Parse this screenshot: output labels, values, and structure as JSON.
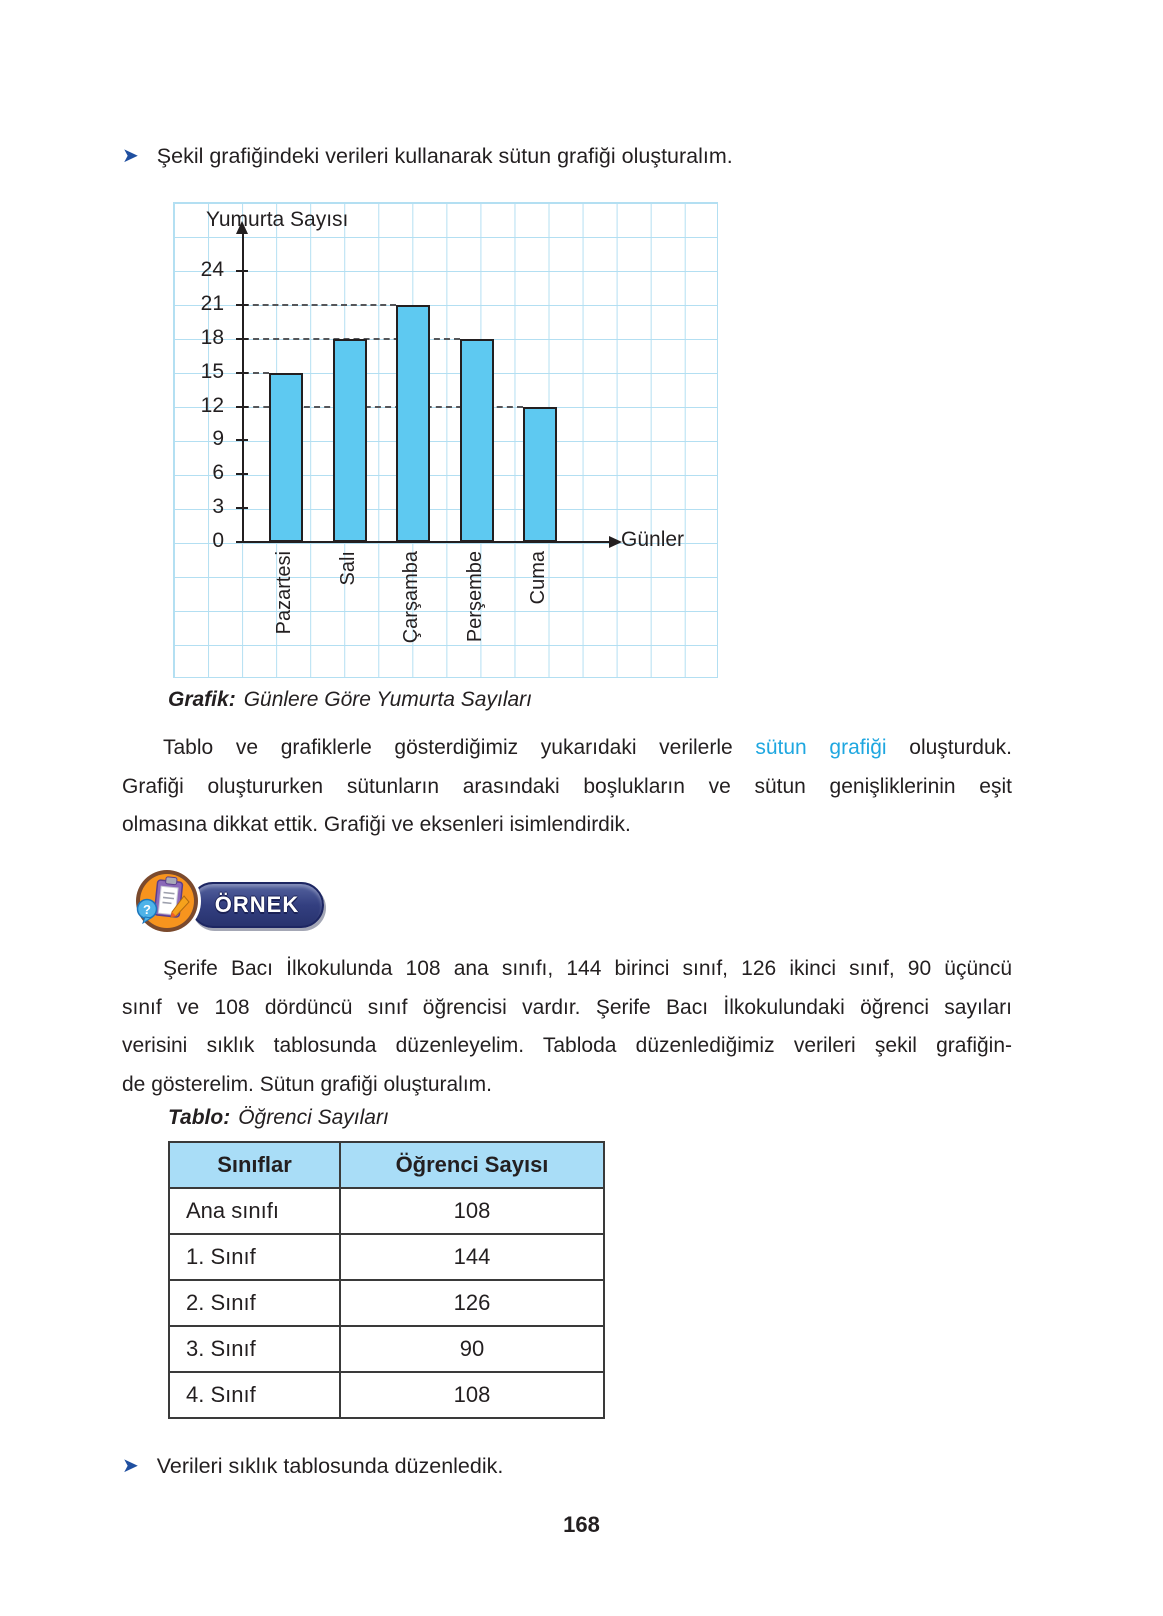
{
  "page_number": "168",
  "colors": {
    "bullet_arrow": "#1F4FA0",
    "highlight_blue": "#1FA7E0",
    "bar_fill": "#5EC9F1",
    "grid_line": "#B3DFF2",
    "table_header_bg": "#A9DDF7"
  },
  "bullets": {
    "intro": "Şekil grafiğindeki verileri kullanarak sütun grafiği oluşturalım.",
    "closing": "Verileri sıklık tablosunda düzenledik."
  },
  "chart_data": {
    "type": "bar",
    "title": "",
    "ylabel": "Yumurta Sayısı",
    "xlabel": "Günler",
    "categories": [
      "Pazartesi",
      "Salı",
      "Çarşamba",
      "Perşembe",
      "Cuma"
    ],
    "values": [
      15,
      18,
      21,
      18,
      12
    ],
    "yticks": [
      0,
      3,
      6,
      9,
      12,
      15,
      18,
      21,
      24
    ],
    "ylim": [
      0,
      27
    ],
    "grid": true,
    "legend": false,
    "dashed_guides": [
      {
        "value": 15,
        "to_category": "Pazartesi"
      },
      {
        "value": 18,
        "to_category": "Perşembe"
      },
      {
        "value": 21,
        "to_category": "Çarşamba"
      },
      {
        "value": 12,
        "to_category": "Cuma"
      }
    ]
  },
  "figure_caption": {
    "label": "Grafik:",
    "text": "Günlere Göre Yumurta Sayıları"
  },
  "paragraph1": {
    "lines": [
      {
        "justify": true,
        "indent": true,
        "parts": [
          {
            "text": "Tablo ve grafiklerle gösterdiğimiz yukarıdaki verilerle "
          },
          {
            "text": "sütun grafiği",
            "accent": true
          },
          {
            "text": " oluşturduk."
          }
        ]
      },
      {
        "justify": true,
        "parts": [
          {
            "text": "Grafiği oluştururken sütunların arasındaki boşlukların ve sütun genişliklerinin eşit"
          }
        ]
      },
      {
        "parts": [
          {
            "text": "olmasına dikkat ettik. Grafiği ve eksenleri isimlendirdik."
          }
        ]
      }
    ]
  },
  "ornek": {
    "label": "ÖRNEK"
  },
  "paragraph2": {
    "lines": [
      {
        "justify": true,
        "indent": true,
        "parts": [
          {
            "text": "Şerife Bacı İlkokulunda 108 ana sınıfı, 144 birinci sınıf, 126 ikinci sınıf, 90 üçüncü"
          }
        ]
      },
      {
        "justify": true,
        "parts": [
          {
            "text": "sınıf ve 108 dördüncü sınıf öğrencisi vardır. Şerife Bacı İlkokulundaki öğrenci sayıları"
          }
        ]
      },
      {
        "justify": true,
        "parts": [
          {
            "text": "verisini sıklık tablosunda düzenleyelim. Tabloda düzenlediğimiz verileri şekil grafiğin-"
          }
        ]
      },
      {
        "parts": [
          {
            "text": "de gösterelim. Sütun grafiği oluşturalım."
          }
        ]
      }
    ]
  },
  "table": {
    "caption_label": "Tablo:",
    "caption_text": "Öğrenci Sayıları",
    "headers": [
      "Sınıflar",
      "Öğrenci Sayısı"
    ],
    "rows": [
      [
        "Ana sınıfı",
        "108"
      ],
      [
        "1. Sınıf",
        "144"
      ],
      [
        "2. Sınıf",
        "126"
      ],
      [
        "3. Sınıf",
        "90"
      ],
      [
        "4. Sınıf",
        "108"
      ]
    ]
  }
}
